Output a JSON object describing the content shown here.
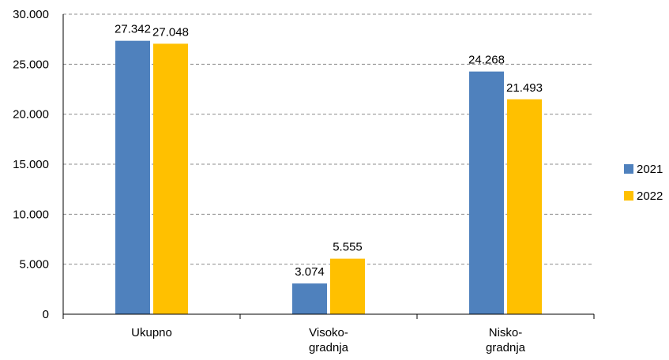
{
  "chart_data": {
    "type": "bar",
    "categories": [
      [
        "Ukupno"
      ],
      [
        "Visoko-",
        "gradnja"
      ],
      [
        "Nisko-",
        "gradnja"
      ]
    ],
    "series": [
      {
        "name": "2021",
        "color": "#4f81bd",
        "values": [
          27342,
          3074,
          24268
        ],
        "labels": [
          "27.342",
          "3.074",
          "24.268"
        ]
      },
      {
        "name": "2022",
        "color": "#ffc000",
        "values": [
          27048,
          5555,
          21493
        ],
        "labels": [
          "27.048",
          "5.555",
          "21.493"
        ]
      }
    ],
    "ylim": [
      0,
      30000
    ],
    "yticks": [
      0,
      5000,
      10000,
      15000,
      20000,
      25000,
      30000
    ],
    "ytick_labels": [
      "0",
      "5.000",
      "10.000",
      "15.000",
      "20.000",
      "25.000",
      "30.000"
    ],
    "grid": "horizontal dashed",
    "legend_position": "right",
    "title": "",
    "xlabel": "",
    "ylabel": ""
  }
}
